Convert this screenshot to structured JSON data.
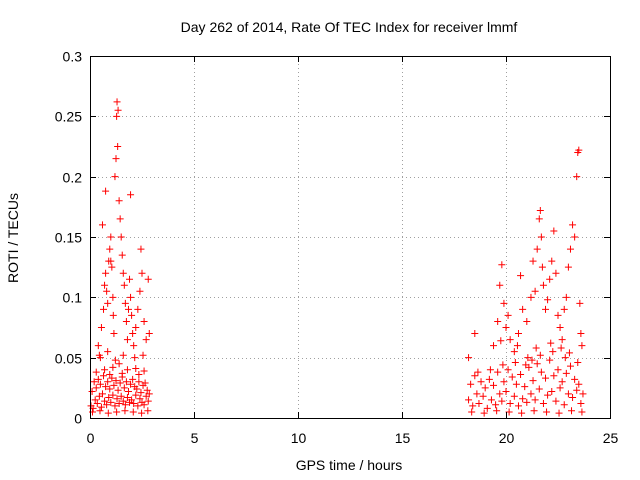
{
  "chart_data": {
    "type": "scatter",
    "title": "Day 262 of 2014, Rate Of TEC Index for receiver lmmf",
    "xlabel": "GPS time / hours",
    "ylabel": "ROTI / TECUs",
    "xlim": [
      0,
      25
    ],
    "ylim": [
      0,
      0.3
    ],
    "grid": true,
    "marker": "+",
    "colors": {
      "series": "#ff0000",
      "grid": "#a0a0a0",
      "axis": "#000000"
    },
    "x_ticks": [
      {
        "value": 0,
        "label": "0"
      },
      {
        "value": 5,
        "label": "5"
      },
      {
        "value": 10,
        "label": "10"
      },
      {
        "value": 15,
        "label": "15"
      },
      {
        "value": 20,
        "label": "20"
      },
      {
        "value": 25,
        "label": "25"
      }
    ],
    "y_ticks": [
      {
        "value": 0,
        "label": "0"
      },
      {
        "value": 0.05,
        "label": "0.05"
      },
      {
        "value": 0.1,
        "label": "0.1"
      },
      {
        "value": 0.15,
        "label": "0.15"
      },
      {
        "value": 0.2,
        "label": "0.2"
      },
      {
        "value": 0.25,
        "label": "0.25"
      },
      {
        "value": 0.3,
        "label": "0.3"
      }
    ],
    "series": [
      {
        "name": "ROTI",
        "points": [
          [
            0.05,
            0.01
          ],
          [
            0.1,
            0.022
          ],
          [
            0.15,
            0.008
          ],
          [
            0.2,
            0.03
          ],
          [
            0.25,
            0.015
          ],
          [
            0.3,
            0.025
          ],
          [
            0.35,
            0.012
          ],
          [
            0.4,
            0.032
          ],
          [
            0.45,
            0.018
          ],
          [
            0.5,
            0.028
          ],
          [
            0.55,
            0.009
          ],
          [
            0.6,
            0.02
          ],
          [
            0.65,
            0.035
          ],
          [
            0.7,
            0.014
          ],
          [
            0.75,
            0.026
          ],
          [
            0.8,
            0.011
          ],
          [
            0.85,
            0.03
          ],
          [
            0.9,
            0.017
          ],
          [
            0.95,
            0.024
          ],
          [
            1.0,
            0.013
          ],
          [
            1.05,
            0.033
          ],
          [
            1.1,
            0.019
          ],
          [
            1.15,
            0.027
          ],
          [
            1.2,
            0.01
          ],
          [
            1.25,
            0.031
          ],
          [
            1.3,
            0.016
          ],
          [
            1.35,
            0.023
          ],
          [
            1.4,
            0.012
          ],
          [
            1.45,
            0.029
          ],
          [
            1.5,
            0.018
          ],
          [
            1.55,
            0.034
          ],
          [
            1.6,
            0.014
          ],
          [
            1.65,
            0.025
          ],
          [
            1.7,
            0.011
          ],
          [
            1.75,
            0.03
          ],
          [
            1.8,
            0.017
          ],
          [
            1.85,
            0.022
          ],
          [
            1.9,
            0.013
          ],
          [
            1.95,
            0.028
          ],
          [
            2.0,
            0.015
          ],
          [
            2.05,
            0.032
          ],
          [
            2.1,
            0.012
          ],
          [
            2.15,
            0.026
          ],
          [
            2.2,
            0.019
          ],
          [
            2.25,
            0.024
          ],
          [
            2.3,
            0.01
          ],
          [
            2.35,
            0.03
          ],
          [
            2.4,
            0.016
          ],
          [
            2.45,
            0.021
          ],
          [
            2.5,
            0.013
          ],
          [
            2.55,
            0.027
          ],
          [
            2.6,
            0.011
          ],
          [
            2.65,
            0.029
          ],
          [
            2.7,
            0.018
          ],
          [
            2.75,
            0.023
          ],
          [
            2.8,
            0.014
          ],
          [
            2.85,
            0.02
          ],
          [
            0.12,
            0.005
          ],
          [
            0.48,
            0.006
          ],
          [
            0.88,
            0.004
          ],
          [
            1.28,
            0.005
          ],
          [
            1.68,
            0.006
          ],
          [
            2.08,
            0.005
          ],
          [
            2.48,
            0.004
          ],
          [
            2.78,
            0.006
          ],
          [
            0.3,
            0.038
          ],
          [
            0.7,
            0.04
          ],
          [
            1.1,
            0.042
          ],
          [
            1.4,
            0.045
          ],
          [
            1.8,
            0.04
          ],
          [
            2.2,
            0.041
          ],
          [
            2.6,
            0.039
          ],
          [
            0.95,
            0.036
          ],
          [
            1.55,
            0.037
          ],
          [
            2.35,
            0.036
          ],
          [
            0.4,
            0.06
          ],
          [
            0.55,
            0.075
          ],
          [
            0.65,
            0.09
          ],
          [
            0.7,
            0.11
          ],
          [
            0.75,
            0.12
          ],
          [
            0.8,
            0.105
          ],
          [
            0.85,
            0.095
          ],
          [
            0.9,
            0.13
          ],
          [
            0.95,
            0.14
          ],
          [
            1.0,
            0.15
          ],
          [
            1.05,
            0.125
          ],
          [
            1.1,
            0.1
          ],
          [
            1.12,
            0.085
          ],
          [
            1.15,
            0.07
          ],
          [
            1.2,
            0.2
          ],
          [
            1.25,
            0.215
          ],
          [
            1.28,
            0.25
          ],
          [
            1.3,
            0.262
          ],
          [
            1.33,
            0.225
          ],
          [
            1.35,
            0.255
          ],
          [
            1.4,
            0.18
          ],
          [
            1.45,
            0.165
          ],
          [
            1.5,
            0.15
          ],
          [
            1.55,
            0.135
          ],
          [
            1.6,
            0.12
          ],
          [
            1.65,
            0.11
          ],
          [
            1.7,
            0.095
          ],
          [
            1.75,
            0.08
          ],
          [
            1.8,
            0.065
          ],
          [
            1.85,
            0.09
          ],
          [
            1.9,
            0.115
          ],
          [
            1.95,
            0.1
          ],
          [
            2.0,
            0.085
          ],
          [
            2.05,
            0.07
          ],
          [
            2.1,
            0.06
          ],
          [
            2.2,
            0.075
          ],
          [
            2.3,
            0.09
          ],
          [
            2.4,
            0.105
          ],
          [
            2.45,
            0.14
          ],
          [
            2.5,
            0.12
          ],
          [
            2.6,
            0.08
          ],
          [
            2.7,
            0.065
          ],
          [
            2.8,
            0.115
          ],
          [
            2.85,
            0.07
          ],
          [
            0.6,
            0.16
          ],
          [
            0.75,
            0.188
          ],
          [
            1.0,
            0.13
          ],
          [
            0.5,
            0.05
          ],
          [
            0.85,
            0.055
          ],
          [
            1.6,
            0.052
          ],
          [
            2.15,
            0.05
          ],
          [
            2.55,
            0.052
          ],
          [
            1.95,
            0.185
          ],
          [
            0.45,
            0.052
          ],
          [
            1.22,
            0.048
          ],
          [
            18.2,
            0.015
          ],
          [
            18.3,
            0.028
          ],
          [
            18.4,
            0.01
          ],
          [
            18.5,
            0.035
          ],
          [
            18.6,
            0.02
          ],
          [
            18.7,
            0.012
          ],
          [
            18.8,
            0.03
          ],
          [
            18.9,
            0.018
          ],
          [
            19.0,
            0.025
          ],
          [
            19.1,
            0.008
          ],
          [
            19.2,
            0.032
          ],
          [
            19.3,
            0.015
          ],
          [
            19.4,
            0.027
          ],
          [
            19.5,
            0.011
          ],
          [
            19.6,
            0.038
          ],
          [
            19.7,
            0.02
          ],
          [
            19.8,
            0.014
          ],
          [
            19.9,
            0.03
          ],
          [
            20.0,
            0.022
          ],
          [
            20.1,
            0.04
          ],
          [
            20.2,
            0.012
          ],
          [
            20.3,
            0.034
          ],
          [
            20.4,
            0.018
          ],
          [
            20.5,
            0.028
          ],
          [
            20.6,
            0.01
          ],
          [
            20.7,
            0.036
          ],
          [
            20.8,
            0.016
          ],
          [
            20.9,
            0.026
          ],
          [
            21.0,
            0.013
          ],
          [
            21.1,
            0.042
          ],
          [
            21.2,
            0.02
          ],
          [
            21.3,
            0.031
          ],
          [
            21.4,
            0.015
          ],
          [
            21.5,
            0.045
          ],
          [
            21.6,
            0.024
          ],
          [
            21.7,
            0.038
          ],
          [
            21.8,
            0.012
          ],
          [
            21.9,
            0.033
          ],
          [
            22.0,
            0.019
          ],
          [
            22.1,
            0.048
          ],
          [
            22.2,
            0.022
          ],
          [
            22.3,
            0.035
          ],
          [
            22.4,
            0.014
          ],
          [
            22.5,
            0.04
          ],
          [
            22.6,
            0.025
          ],
          [
            22.7,
            0.03
          ],
          [
            22.8,
            0.011
          ],
          [
            22.9,
            0.037
          ],
          [
            23.0,
            0.02
          ],
          [
            23.1,
            0.043
          ],
          [
            23.2,
            0.017
          ],
          [
            23.3,
            0.032
          ],
          [
            23.4,
            0.023
          ],
          [
            23.5,
            0.028
          ],
          [
            23.6,
            0.012
          ],
          [
            23.7,
            0.02
          ],
          [
            18.35,
            0.005
          ],
          [
            18.95,
            0.004
          ],
          [
            19.55,
            0.006
          ],
          [
            20.15,
            0.005
          ],
          [
            20.75,
            0.004
          ],
          [
            21.35,
            0.006
          ],
          [
            21.95,
            0.005
          ],
          [
            22.55,
            0.004
          ],
          [
            23.15,
            0.006
          ],
          [
            23.65,
            0.005
          ],
          [
            18.65,
            0.038
          ],
          [
            19.25,
            0.04
          ],
          [
            19.85,
            0.044
          ],
          [
            20.45,
            0.046
          ],
          [
            21.05,
            0.05
          ],
          [
            21.65,
            0.052
          ],
          [
            22.25,
            0.055
          ],
          [
            22.85,
            0.05
          ],
          [
            23.45,
            0.046
          ],
          [
            23.05,
            0.054
          ],
          [
            21.25,
            0.048
          ],
          [
            20.95,
            0.044
          ],
          [
            18.2,
            0.05
          ],
          [
            18.5,
            0.07
          ],
          [
            19.4,
            0.06
          ],
          [
            19.6,
            0.08
          ],
          [
            19.7,
            0.11
          ],
          [
            19.8,
            0.127
          ],
          [
            19.9,
            0.095
          ],
          [
            20.0,
            0.075
          ],
          [
            20.1,
            0.085
          ],
          [
            20.2,
            0.065
          ],
          [
            20.4,
            0.055
          ],
          [
            20.6,
            0.07
          ],
          [
            20.7,
            0.118
          ],
          [
            20.8,
            0.09
          ],
          [
            21.0,
            0.08
          ],
          [
            21.2,
            0.1
          ],
          [
            21.3,
            0.13
          ],
          [
            21.4,
            0.105
          ],
          [
            21.5,
            0.14
          ],
          [
            21.6,
            0.165
          ],
          [
            21.65,
            0.172
          ],
          [
            21.7,
            0.15
          ],
          [
            21.75,
            0.125
          ],
          [
            21.8,
            0.11
          ],
          [
            21.9,
            0.09
          ],
          [
            22.0,
            0.098
          ],
          [
            22.1,
            0.115
          ],
          [
            22.2,
            0.13
          ],
          [
            22.3,
            0.155
          ],
          [
            22.4,
            0.12
          ],
          [
            22.5,
            0.085
          ],
          [
            22.6,
            0.075
          ],
          [
            22.7,
            0.065
          ],
          [
            22.8,
            0.09
          ],
          [
            22.9,
            0.1
          ],
          [
            23.0,
            0.125
          ],
          [
            23.1,
            0.14
          ],
          [
            23.2,
            0.16
          ],
          [
            23.3,
            0.15
          ],
          [
            23.4,
            0.2
          ],
          [
            23.45,
            0.22
          ],
          [
            23.5,
            0.222
          ],
          [
            23.55,
            0.095
          ],
          [
            23.6,
            0.07
          ],
          [
            23.65,
            0.06
          ],
          [
            21.45,
            0.058
          ],
          [
            22.15,
            0.062
          ],
          [
            22.65,
            0.058
          ],
          [
            19.75,
            0.064
          ],
          [
            20.55,
            0.06
          ]
        ]
      }
    ]
  }
}
